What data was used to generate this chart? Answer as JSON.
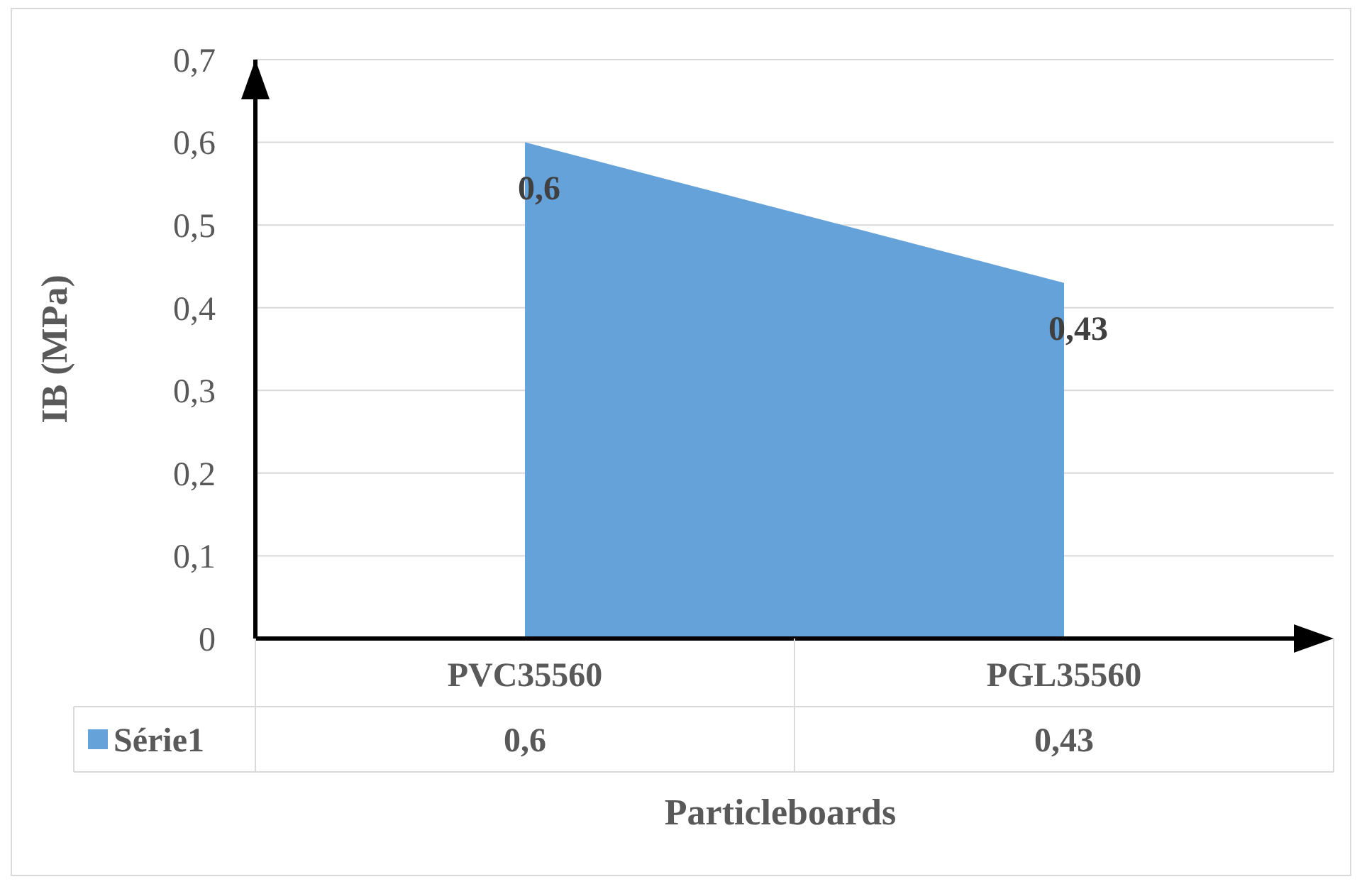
{
  "chart_data": {
    "type": "area",
    "xlabel": "Particleboards",
    "ylabel": "IB (MPa)",
    "categories": [
      "PVC35560",
      "PGL35560"
    ],
    "series": [
      {
        "name": "Série1",
        "color": "#65a2d9",
        "values": [
          0.6,
          0.43
        ],
        "value_labels": [
          "0,6",
          "0,43"
        ]
      }
    ],
    "ylim": [
      0,
      0.7
    ],
    "yticks": [
      {
        "value": 0,
        "label": "0"
      },
      {
        "value": 0.1,
        "label": "0,1"
      },
      {
        "value": 0.2,
        "label": "0,2"
      },
      {
        "value": 0.3,
        "label": "0,3"
      },
      {
        "value": 0.4,
        "label": "0,4"
      },
      {
        "value": 0.5,
        "label": "0,5"
      },
      {
        "value": 0.6,
        "label": "0,6"
      },
      {
        "value": 0.7,
        "label": "0,7"
      }
    ],
    "grid": "y",
    "legend": "bottom"
  }
}
